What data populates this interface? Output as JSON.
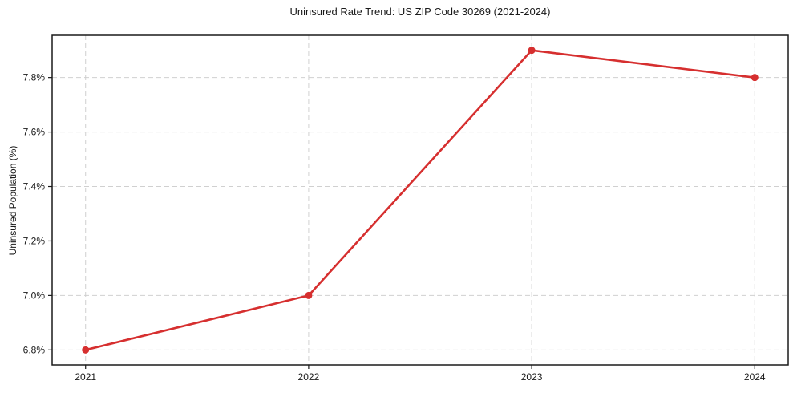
{
  "chart_data": {
    "type": "line",
    "title": "Uninsured Rate Trend: US ZIP Code 30269 (2021-2024)",
    "xlabel": "",
    "ylabel": "Uninsured Population (%)",
    "x": [
      2021,
      2022,
      2023,
      2024
    ],
    "values": [
      6.8,
      7.0,
      7.9,
      7.8
    ],
    "x_tick_labels": [
      "2021",
      "2022",
      "2023",
      "2024"
    ],
    "y_ticks": [
      6.8,
      7.0,
      7.2,
      7.4,
      7.6,
      7.8
    ],
    "y_tick_labels": [
      "6.8%",
      "7.0%",
      "7.2%",
      "7.4%",
      "7.6%",
      "7.8%"
    ],
    "xlim": [
      2020.85,
      2024.15
    ],
    "ylim": [
      6.745,
      7.955
    ],
    "grid": true,
    "grid_style": "dashed",
    "legend_position": "none",
    "colors": {
      "line": "#d62f2f",
      "marker": "#d62f2f",
      "grid": "#d0d0d0",
      "axis": "#1a1a1a",
      "text": "#1a1a1a",
      "background": "#ffffff"
    }
  }
}
